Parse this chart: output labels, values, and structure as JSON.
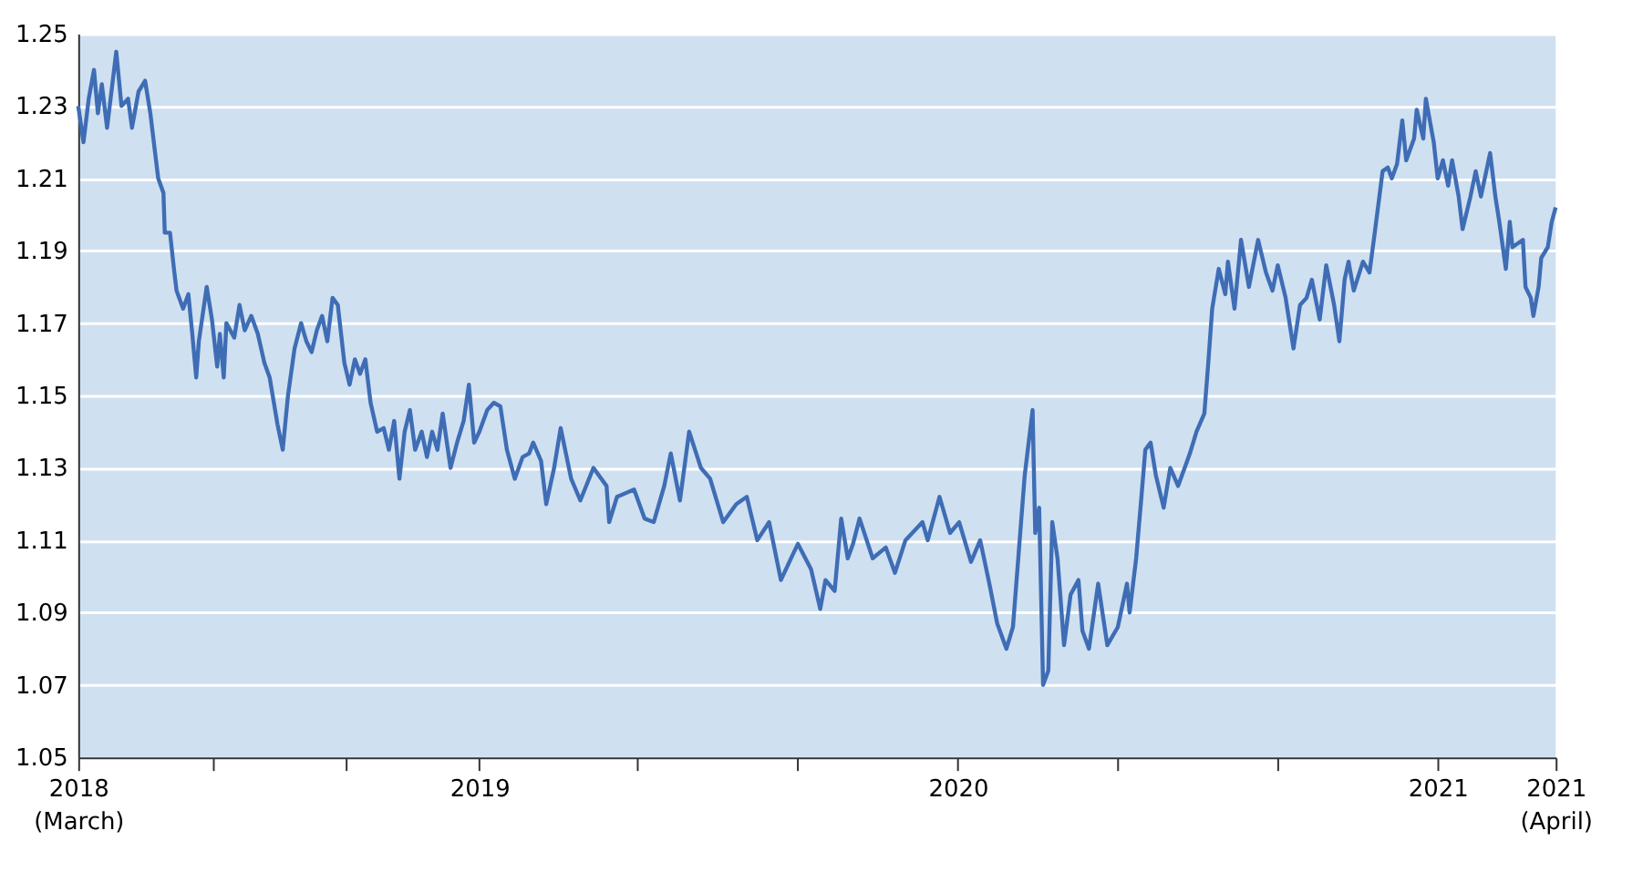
{
  "chart_data": {
    "type": "line",
    "x": [
      "2018-03-01",
      "2018-03-05",
      "2018-03-09",
      "2018-03-13",
      "2018-03-16",
      "2018-03-19",
      "2018-03-23",
      "2018-03-30",
      "2018-04-03",
      "2018-04-08",
      "2018-04-11",
      "2018-04-16",
      "2018-04-21",
      "2018-04-25",
      "2018-04-27",
      "2018-05-01",
      "2018-05-05",
      "2018-05-06",
      "2018-05-10",
      "2018-05-13",
      "2018-05-15",
      "2018-05-20",
      "2018-05-24",
      "2018-05-27",
      "2018-05-30",
      "2018-06-01",
      "2018-06-07",
      "2018-06-11",
      "2018-06-15",
      "2018-06-17",
      "2018-06-20",
      "2018-06-22",
      "2018-06-28",
      "2018-07-02",
      "2018-07-06",
      "2018-07-11",
      "2018-07-16",
      "2018-07-21",
      "2018-07-25",
      "2018-07-31",
      "2018-08-04",
      "2018-08-08",
      "2018-08-13",
      "2018-08-18",
      "2018-08-22",
      "2018-08-26",
      "2018-08-30",
      "2018-09-03",
      "2018-09-07",
      "2018-09-11",
      "2018-09-15",
      "2018-09-20",
      "2018-09-24",
      "2018-09-28",
      "2018-10-02",
      "2018-10-06",
      "2018-10-10",
      "2018-10-15",
      "2018-10-20",
      "2018-10-24",
      "2018-10-28",
      "2018-11-01",
      "2018-11-05",
      "2018-11-09",
      "2018-11-13",
      "2018-11-18",
      "2018-11-22",
      "2018-11-26",
      "2018-11-30",
      "2018-12-04",
      "2018-12-10",
      "2018-12-15",
      "2018-12-20",
      "2018-12-24",
      "2018-12-28",
      "2019-01-01",
      "2019-01-07",
      "2019-01-12",
      "2019-01-17",
      "2019-01-22",
      "2019-01-28",
      "2019-02-03",
      "2019-02-08",
      "2019-02-11",
      "2019-02-17",
      "2019-02-21",
      "2019-02-27",
      "2019-03-04",
      "2019-03-12",
      "2019-03-19",
      "2019-03-29",
      "2019-04-08",
      "2019-04-10",
      "2019-04-16",
      "2019-04-29",
      "2019-05-07",
      "2019-05-14",
      "2019-05-22",
      "2019-05-27",
      "2019-06-03",
      "2019-06-10",
      "2019-06-19",
      "2019-06-26",
      "2019-07-06",
      "2019-07-16",
      "2019-07-24",
      "2019-08-01",
      "2019-08-10",
      "2019-08-19",
      "2019-08-28",
      "2019-09-01",
      "2019-09-11",
      "2019-09-18",
      "2019-09-22",
      "2019-09-29",
      "2019-10-04",
      "2019-10-09",
      "2019-10-13",
      "2019-10-18",
      "2019-10-28",
      "2019-11-07",
      "2019-11-14",
      "2019-11-22",
      "2019-12-05",
      "2019-12-09",
      "2019-12-18",
      "2019-12-26",
      "2020-01-02",
      "2020-01-11",
      "2020-01-18",
      "2020-01-25",
      "2020-01-31",
      "2020-02-07",
      "2020-02-12",
      "2020-02-18",
      "2020-02-21",
      "2020-02-27",
      "2020-02-29",
      "2020-03-03",
      "2020-03-06",
      "2020-03-10",
      "2020-03-13",
      "2020-03-17",
      "2020-03-22",
      "2020-03-27",
      "2020-04-02",
      "2020-04-05",
      "2020-04-10",
      "2020-04-17",
      "2020-04-24",
      "2020-05-02",
      "2020-05-09",
      "2020-05-11",
      "2020-05-16",
      "2020-05-20",
      "2020-05-23",
      "2020-05-27",
      "2020-05-31",
      "2020-06-06",
      "2020-06-11",
      "2020-06-17",
      "2020-06-26",
      "2020-07-01",
      "2020-07-07",
      "2020-07-10",
      "2020-07-13",
      "2020-07-18",
      "2020-07-23",
      "2020-07-25",
      "2020-07-30",
      "2020-08-04",
      "2020-08-10",
      "2020-08-17",
      "2020-08-23",
      "2020-08-28",
      "2020-09-01",
      "2020-09-07",
      "2020-09-13",
      "2020-09-18",
      "2020-09-23",
      "2020-09-27",
      "2020-10-03",
      "2020-10-08",
      "2020-10-14",
      "2020-10-18",
      "2020-10-22",
      "2020-10-25",
      "2020-10-29",
      "2020-11-05",
      "2020-11-10",
      "2020-11-14",
      "2020-11-20",
      "2020-11-24",
      "2020-11-27",
      "2020-12-01",
      "2020-12-05",
      "2020-12-08",
      "2020-12-14",
      "2020-12-16",
      "2020-12-21",
      "2020-12-23",
      "2020-12-29",
      "2021-01-01",
      "2021-01-05",
      "2021-01-09",
      "2021-01-12",
      "2021-01-17",
      "2021-01-20",
      "2021-01-26",
      "2021-01-30",
      "2021-02-03",
      "2021-02-10",
      "2021-02-14",
      "2021-02-17",
      "2021-02-22",
      "2021-02-25",
      "2021-02-27",
      "2021-03-03",
      "2021-03-07",
      "2021-03-09",
      "2021-03-13",
      "2021-03-15",
      "2021-03-19",
      "2021-03-21",
      "2021-03-26",
      "2021-03-29",
      "2021-04-01"
    ],
    "series": [
      {
        "color": "#3f6db5",
        "values": [
          1.23,
          1.22,
          1.232,
          1.24,
          1.228,
          1.236,
          1.224,
          1.245,
          1.23,
          1.232,
          1.224,
          1.234,
          1.237,
          1.228,
          1.222,
          1.21,
          1.206,
          1.195,
          1.195,
          1.185,
          1.179,
          1.174,
          1.178,
          1.167,
          1.155,
          1.165,
          1.18,
          1.171,
          1.158,
          1.167,
          1.155,
          1.17,
          1.166,
          1.175,
          1.168,
          1.172,
          1.167,
          1.159,
          1.155,
          1.142,
          1.135,
          1.15,
          1.163,
          1.17,
          1.165,
          1.162,
          1.168,
          1.172,
          1.165,
          1.177,
          1.175,
          1.159,
          1.153,
          1.16,
          1.156,
          1.16,
          1.148,
          1.14,
          1.141,
          1.135,
          1.143,
          1.127,
          1.14,
          1.146,
          1.135,
          1.14,
          1.133,
          1.14,
          1.135,
          1.145,
          1.13,
          1.137,
          1.143,
          1.153,
          1.137,
          1.14,
          1.146,
          1.148,
          1.147,
          1.135,
          1.127,
          1.133,
          1.134,
          1.137,
          1.132,
          1.12,
          1.13,
          1.141,
          1.127,
          1.121,
          1.13,
          1.125,
          1.115,
          1.122,
          1.124,
          1.116,
          1.115,
          1.125,
          1.134,
          1.121,
          1.14,
          1.13,
          1.127,
          1.115,
          1.12,
          1.122,
          1.11,
          1.115,
          1.099,
          1.106,
          1.109,
          1.102,
          1.091,
          1.099,
          1.096,
          1.116,
          1.105,
          1.109,
          1.116,
          1.105,
          1.108,
          1.101,
          1.11,
          1.115,
          1.11,
          1.122,
          1.112,
          1.115,
          1.104,
          1.11,
          1.098,
          1.087,
          1.08,
          1.086,
          1.114,
          1.128,
          1.146,
          1.112,
          1.119,
          1.07,
          1.074,
          1.115,
          1.105,
          1.081,
          1.095,
          1.099,
          1.085,
          1.08,
          1.098,
          1.081,
          1.086,
          1.098,
          1.09,
          1.105,
          1.122,
          1.135,
          1.137,
          1.128,
          1.119,
          1.13,
          1.125,
          1.134,
          1.14,
          1.145,
          1.159,
          1.174,
          1.185,
          1.178,
          1.187,
          1.174,
          1.193,
          1.18,
          1.193,
          1.184,
          1.179,
          1.186,
          1.177,
          1.163,
          1.175,
          1.177,
          1.182,
          1.171,
          1.186,
          1.175,
          1.165,
          1.182,
          1.187,
          1.179,
          1.187,
          1.184,
          1.195,
          1.212,
          1.213,
          1.21,
          1.214,
          1.226,
          1.215,
          1.221,
          1.229,
          1.221,
          1.232,
          1.22,
          1.21,
          1.215,
          1.208,
          1.215,
          1.205,
          1.196,
          1.205,
          1.212,
          1.205,
          1.217,
          1.205,
          1.198,
          1.185,
          1.198,
          1.191,
          1.192,
          1.193,
          1.18,
          1.177,
          1.172,
          1.18,
          1.188,
          1.191,
          1.198,
          1.202
        ]
      }
    ],
    "xlim": [
      "2018-03-01",
      "2021-04-01"
    ],
    "xticks": [
      {
        "value": "2018-03-01",
        "label": "2018\n(March)"
      },
      {
        "value": "2018-06-12",
        "label": null
      },
      {
        "value": "2018-09-21",
        "label": null
      },
      {
        "value": "2019-01-01",
        "label": "2019"
      },
      {
        "value": "2019-05-01",
        "label": null
      },
      {
        "value": "2019-08-31",
        "label": null
      },
      {
        "value": "2020-01-01",
        "label": "2020"
      },
      {
        "value": "2020-05-01",
        "label": null
      },
      {
        "value": "2020-08-31",
        "label": null
      },
      {
        "value": "2021-01-01",
        "label": "2021"
      },
      {
        "value": "2021-04-01",
        "label": "2021\n(April)"
      }
    ],
    "ylim": [
      1.05,
      1.25
    ],
    "yticks": [
      1.05,
      1.07,
      1.09,
      1.11,
      1.13,
      1.15,
      1.17,
      1.19,
      1.21,
      1.23,
      1.25
    ],
    "grid": "y",
    "legend": false,
    "marker": "none",
    "line_style": "solid"
  }
}
